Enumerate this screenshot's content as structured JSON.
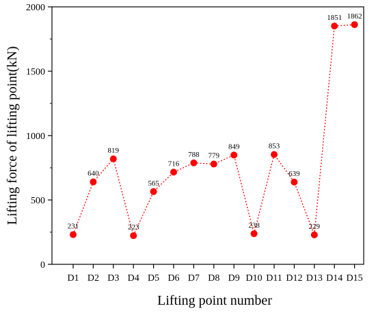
{
  "chart_data": {
    "type": "line",
    "title": "",
    "xlabel": "Lifting point number",
    "ylabel": "Lifting force of lifting point(kN)",
    "categories": [
      "D1",
      "D2",
      "D3",
      "D4",
      "D5",
      "D6",
      "D7",
      "D8",
      "D9",
      "D10",
      "D11",
      "D12",
      "D13",
      "D14",
      "D15"
    ],
    "series": [
      {
        "values": [
          231,
          640,
          819,
          223,
          565,
          716,
          788,
          779,
          849,
          238,
          853,
          639,
          229,
          1851,
          1862
        ],
        "color": "#ff0000",
        "line_style": "dotted",
        "marker": "circle"
      }
    ],
    "ylim": [
      0,
      2000
    ],
    "yticks": [
      0,
      500,
      1000,
      1500,
      2000
    ],
    "grid": false,
    "legend": "none",
    "data_labels": true
  }
}
